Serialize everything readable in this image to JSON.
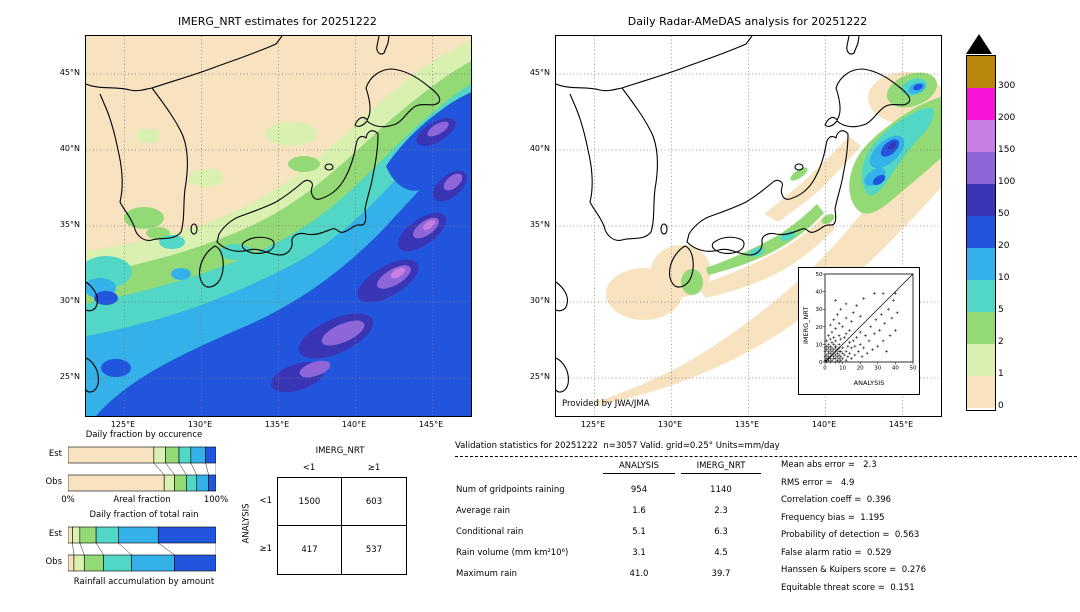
{
  "colorbar": {
    "labels": [
      "300",
      "200",
      "150",
      "100",
      "50",
      "20",
      "10",
      "5",
      "2",
      "1",
      "0"
    ],
    "colors_top_to_bottom": [
      "#b8860b",
      "#f614d8",
      "#c77fe3",
      "#8f66d9",
      "#3a35b5",
      "#2255dd",
      "#33b1e8",
      "#52d6c5",
      "#93d976",
      "#d9f0b0",
      "#f8e3c0"
    ],
    "over_range_marker": "black-triangle"
  },
  "chart_data": [
    {
      "type": "heatmap",
      "title": "IMERG_NRT estimates for 20251222",
      "units": "mm/day",
      "lat_ticks": [
        "45°N",
        "40°N",
        "35°N",
        "30°N",
        "25°N"
      ],
      "lon_ticks": [
        "125°E",
        "130°E",
        "135°E",
        "140°E",
        "145°E"
      ],
      "scale_breaks": [
        0,
        1,
        2,
        5,
        10,
        20,
        50,
        100,
        150,
        200,
        300
      ]
    },
    {
      "type": "heatmap",
      "title": "Daily Radar-AMeDAS analysis for 20251222",
      "credit": "Provided by JWA/JMA",
      "units": "mm/day",
      "lat_ticks": [
        "45°N",
        "40°N",
        "35°N",
        "30°N",
        "25°N"
      ],
      "lon_ticks": [
        "125°E",
        "130°E",
        "135°E",
        "140°E",
        "145°E"
      ],
      "scale_breaks": [
        0,
        1,
        2,
        5,
        10,
        20,
        50,
        100,
        150,
        200,
        300
      ]
    },
    {
      "type": "bar",
      "title": "Daily fraction by occurence",
      "categories": [
        "<1",
        "1-2",
        "2-5",
        "5-10",
        "10-20",
        "≥20"
      ],
      "series": [
        {
          "name": "Est",
          "values": [
            58,
            8,
            9,
            8,
            10,
            7
          ]
        },
        {
          "name": "Obs",
          "values": [
            65,
            7,
            8,
            7,
            8,
            5
          ]
        }
      ],
      "colors": [
        "#f8e3c0",
        "#d9f0b0",
        "#93d976",
        "#52d6c5",
        "#33b1e8",
        "#2255dd"
      ],
      "xlabel": "Areal fraction",
      "xlim": [
        "0%",
        "100%"
      ]
    },
    {
      "type": "bar",
      "title": "Daily fraction of total rain",
      "categories": [
        "<1",
        "1-2",
        "2-5",
        "5-10",
        "10-20",
        "≥20"
      ],
      "series": [
        {
          "name": "Est",
          "values": [
            3,
            5,
            11,
            15,
            27,
            39
          ]
        },
        {
          "name": "Obs",
          "values": [
            4,
            7,
            13,
            19,
            29,
            28
          ]
        }
      ],
      "colors": [
        "#f8e3c0",
        "#d9f0b0",
        "#93d976",
        "#52d6c5",
        "#33b1e8",
        "#2255dd"
      ],
      "xlabel": "Rainfall accumulation by amount"
    },
    {
      "type": "table",
      "role": "contingency",
      "col_group": "IMERG_NRT",
      "row_group": "ANALYSIS",
      "col_labels": [
        "<1",
        "≥1"
      ],
      "row_labels": [
        "<1",
        "≥1"
      ],
      "values": [
        [
          "1500",
          "603"
        ],
        [
          "417",
          "537"
        ]
      ]
    },
    {
      "type": "scatter",
      "xlabel": "ANALYSIS",
      "ylabel": "IMERG_NRT",
      "xlim": [
        0,
        50
      ],
      "ylim": [
        0,
        50
      ],
      "ticks": [
        0,
        10,
        20,
        30,
        40,
        50
      ],
      "diagonal": true,
      "points": [
        [
          0,
          1
        ],
        [
          1,
          0
        ],
        [
          1,
          1
        ],
        [
          1,
          2
        ],
        [
          2,
          1
        ],
        [
          2,
          2
        ],
        [
          0,
          3
        ],
        [
          3,
          0
        ],
        [
          2,
          3
        ],
        [
          3,
          2
        ],
        [
          3,
          3
        ],
        [
          1,
          4
        ],
        [
          4,
          1
        ],
        [
          2,
          5
        ],
        [
          5,
          2
        ],
        [
          4,
          4
        ],
        [
          3,
          5
        ],
        [
          5,
          3
        ],
        [
          0,
          6
        ],
        [
          6,
          0
        ],
        [
          5,
          5
        ],
        [
          2,
          6
        ],
        [
          6,
          2
        ],
        [
          4,
          6
        ],
        [
          6,
          4
        ],
        [
          1,
          7
        ],
        [
          7,
          1
        ],
        [
          6,
          6
        ],
        [
          3,
          7
        ],
        [
          7,
          3
        ],
        [
          5,
          7
        ],
        [
          7,
          5
        ],
        [
          0,
          8
        ],
        [
          8,
          0
        ],
        [
          7,
          7
        ],
        [
          2,
          8
        ],
        [
          8,
          2
        ],
        [
          8,
          4
        ],
        [
          4,
          8
        ],
        [
          6,
          8
        ],
        [
          8,
          6
        ],
        [
          8,
          8
        ],
        [
          1,
          9
        ],
        [
          9,
          1
        ],
        [
          9,
          3
        ],
        [
          3,
          9
        ],
        [
          9,
          6
        ],
        [
          6,
          9
        ],
        [
          10,
          2
        ],
        [
          2,
          10
        ],
        [
          10,
          5
        ],
        [
          5,
          10
        ],
        [
          10,
          8
        ],
        [
          8,
          10
        ],
        [
          11,
          4
        ],
        [
          4,
          11
        ],
        [
          12,
          1
        ],
        [
          1,
          12
        ],
        [
          12,
          6
        ],
        [
          6,
          12
        ],
        [
          13,
          3
        ],
        [
          3,
          13
        ],
        [
          13,
          9
        ],
        [
          9,
          13
        ],
        [
          14,
          5
        ],
        [
          5,
          14
        ],
        [
          14,
          11
        ],
        [
          11,
          14
        ],
        [
          15,
          2
        ],
        [
          2,
          15
        ],
        [
          15,
          8
        ],
        [
          8,
          15
        ],
        [
          16,
          12
        ],
        [
          12,
          16
        ],
        [
          17,
          4
        ],
        [
          4,
          17
        ],
        [
          17,
          9
        ],
        [
          18,
          14
        ],
        [
          14,
          18
        ],
        [
          19,
          6
        ],
        [
          6,
          19
        ],
        [
          20,
          10
        ],
        [
          10,
          20
        ],
        [
          20,
          17
        ],
        [
          21,
          3
        ],
        [
          3,
          21
        ],
        [
          22,
          8
        ],
        [
          8,
          22
        ],
        [
          23,
          15
        ],
        [
          15,
          23
        ],
        [
          24,
          5
        ],
        [
          5,
          24
        ],
        [
          25,
          12
        ],
        [
          12,
          25
        ],
        [
          26,
          20
        ],
        [
          20,
          26
        ],
        [
          27,
          7
        ],
        [
          7,
          27
        ],
        [
          28,
          16
        ],
        [
          16,
          28
        ],
        [
          29,
          24
        ],
        [
          30,
          9
        ],
        [
          9,
          30
        ],
        [
          31,
          18
        ],
        [
          32,
          27
        ],
        [
          33,
          12
        ],
        [
          12,
          33
        ],
        [
          34,
          22
        ],
        [
          35,
          6
        ],
        [
          6,
          35
        ],
        [
          36,
          30
        ],
        [
          37,
          15
        ],
        [
          38,
          25
        ],
        [
          39,
          35
        ],
        [
          40,
          18
        ],
        [
          41,
          28
        ],
        [
          28,
          39
        ],
        [
          22,
          36
        ],
        [
          18,
          32
        ],
        [
          33,
          39
        ],
        [
          40,
          39
        ]
      ]
    },
    {
      "type": "table",
      "role": "validation",
      "title": "Validation statistics for 20251222  n=3057 Valid. grid=0.25° Units=mm/day",
      "columns": [
        "ANALYSIS",
        "IMERG_NRT"
      ],
      "rows": [
        {
          "label": "Num of gridpoints raining",
          "values": [
            "954",
            "1140"
          ]
        },
        {
          "label": "Average rain",
          "values": [
            "1.6",
            "2.3"
          ]
        },
        {
          "label": "Conditional rain",
          "values": [
            "5.1",
            "6.3"
          ]
        },
        {
          "label": "Rain volume (mm km²10⁶)",
          "values": [
            "3.1",
            "4.5"
          ]
        },
        {
          "label": "Maximum rain",
          "values": [
            "41.0",
            "39.7"
          ]
        }
      ],
      "metrics_lines": [
        "Mean abs error =   2.3",
        "RMS error =   4.9",
        "Correlation coeff =  0.396",
        "Frequency bias =  1.195",
        "Probability of detection =  0.563",
        "False alarm ratio =  0.529",
        "Hanssen & Kuipers score =  0.276",
        "Equitable threat score =  0.151"
      ],
      "metrics": {
        "n": 3057,
        "mean_abs_error": 2.3,
        "rms_error": 4.9,
        "correlation_coeff": 0.396,
        "frequency_bias": 1.195,
        "probability_of_detection": 0.563,
        "false_alarm_ratio": 0.529,
        "hanssen_kuipers_score": 0.276,
        "equitable_threat_score": 0.151
      }
    }
  ]
}
